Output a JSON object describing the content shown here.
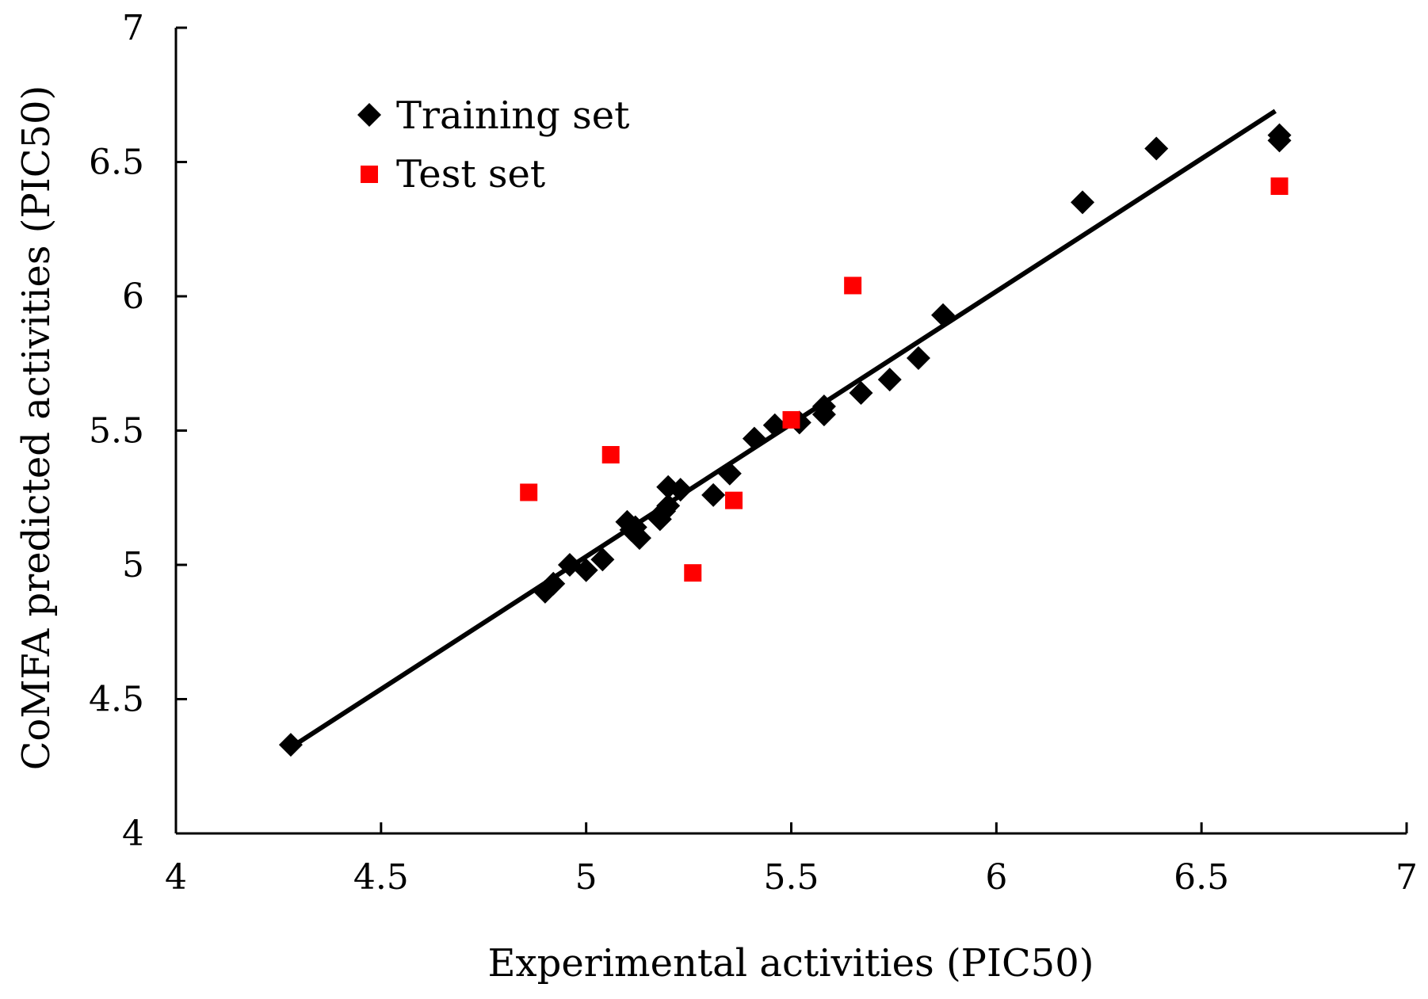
{
  "chart_data": {
    "type": "scatter",
    "title": "",
    "xlabel": "Experimental activities (PIC50)",
    "ylabel": "CoMFA predicted activities (PIC50)",
    "xlim": [
      4,
      7
    ],
    "ylim": [
      4,
      7
    ],
    "xticks": [
      4,
      4.5,
      5,
      5.5,
      6,
      6.5,
      7
    ],
    "yticks": [
      4,
      4.5,
      5,
      5.5,
      6,
      6.5,
      7
    ],
    "xtick_labels": [
      "4",
      "4.5",
      "5",
      "5.5",
      "6",
      "6.5",
      "7"
    ],
    "ytick_labels": [
      "4",
      "4.5",
      "5",
      "5.5",
      "6",
      "6.5",
      "7"
    ],
    "grid": false,
    "legend_position": "top-left",
    "series": [
      {
        "name": "Training set",
        "marker": "diamond",
        "color": "#000000",
        "points": [
          [
            4.28,
            4.33
          ],
          [
            4.9,
            4.9
          ],
          [
            4.92,
            4.93
          ],
          [
            4.96,
            5.0
          ],
          [
            5.0,
            4.98
          ],
          [
            5.04,
            5.02
          ],
          [
            5.1,
            5.16
          ],
          [
            5.11,
            5.13
          ],
          [
            5.12,
            5.14
          ],
          [
            5.13,
            5.1
          ],
          [
            5.18,
            5.17
          ],
          [
            5.19,
            5.2
          ],
          [
            5.2,
            5.22
          ],
          [
            5.2,
            5.29
          ],
          [
            5.23,
            5.28
          ],
          [
            5.31,
            5.26
          ],
          [
            5.35,
            5.34
          ],
          [
            5.41,
            5.47
          ],
          [
            5.46,
            5.52
          ],
          [
            5.52,
            5.53
          ],
          [
            5.58,
            5.56
          ],
          [
            5.58,
            5.59
          ],
          [
            5.67,
            5.64
          ],
          [
            5.74,
            5.69
          ],
          [
            5.81,
            5.77
          ],
          [
            5.87,
            5.93
          ],
          [
            6.21,
            6.35
          ],
          [
            6.39,
            6.55
          ],
          [
            6.69,
            6.6
          ],
          [
            6.69,
            6.58
          ]
        ]
      },
      {
        "name": "Test set",
        "marker": "square",
        "color": "#ff0000",
        "points": [
          [
            4.86,
            5.27
          ],
          [
            5.06,
            5.41
          ],
          [
            5.26,
            4.97
          ],
          [
            5.36,
            5.24
          ],
          [
            5.5,
            5.54
          ],
          [
            5.65,
            6.04
          ],
          [
            6.69,
            6.41
          ]
        ]
      }
    ],
    "fit_line": {
      "name": "regression",
      "color": "#000000",
      "start": [
        4.28,
        4.32
      ],
      "end": [
        6.68,
        6.69
      ]
    }
  }
}
